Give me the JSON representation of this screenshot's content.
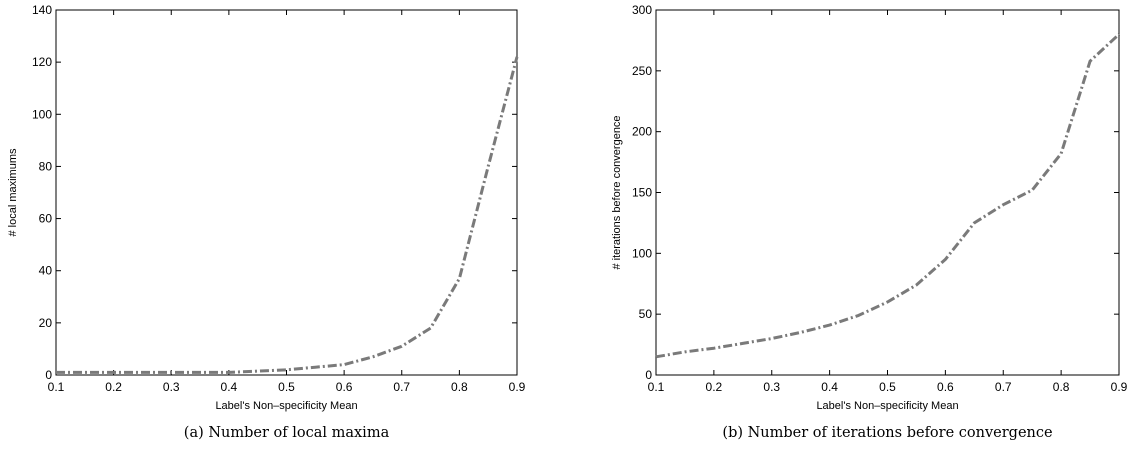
{
  "chart_data": [
    {
      "type": "line",
      "caption": "(a) Number of local maxima",
      "xlabel": "Label's Non–specificity Mean",
      "ylabel": "# local maximums",
      "xlim": [
        0.1,
        0.9
      ],
      "ylim": [
        0,
        140
      ],
      "xticks": [
        "0.1",
        "0.2",
        "0.3",
        "0.4",
        "0.5",
        "0.6",
        "0.7",
        "0.8",
        "0.9"
      ],
      "yticks": [
        "0",
        "20",
        "40",
        "60",
        "80",
        "100",
        "120",
        "140"
      ],
      "grid": false,
      "color": "#7a7a7a",
      "x": [
        0.1,
        0.15,
        0.2,
        0.25,
        0.3,
        0.35,
        0.4,
        0.45,
        0.5,
        0.55,
        0.6,
        0.65,
        0.7,
        0.75,
        0.8,
        0.85,
        0.9
      ],
      "y": [
        1,
        1,
        1,
        1,
        1,
        1,
        1,
        1.5,
        2,
        3,
        4,
        7,
        11,
        18,
        37,
        80,
        122
      ]
    },
    {
      "type": "line",
      "caption": "(b) Number of iterations before convergence",
      "xlabel": "Label's Non–specificity Mean",
      "ylabel": "# iterations before convergence",
      "xlim": [
        0.1,
        0.9
      ],
      "ylim": [
        0,
        300
      ],
      "xticks": [
        "0.1",
        "0.2",
        "0.3",
        "0.4",
        "0.5",
        "0.6",
        "0.7",
        "0.8",
        "0.9"
      ],
      "yticks": [
        "0",
        "50",
        "100",
        "150",
        "200",
        "250",
        "300"
      ],
      "grid": false,
      "color": "#7a7a7a",
      "x": [
        0.1,
        0.15,
        0.2,
        0.25,
        0.3,
        0.35,
        0.4,
        0.45,
        0.5,
        0.55,
        0.6,
        0.65,
        0.7,
        0.75,
        0.8,
        0.85,
        0.9
      ],
      "y": [
        15,
        19,
        22,
        26,
        30,
        35,
        41,
        49,
        60,
        74,
        95,
        125,
        140,
        152,
        182,
        258,
        280
      ]
    }
  ]
}
